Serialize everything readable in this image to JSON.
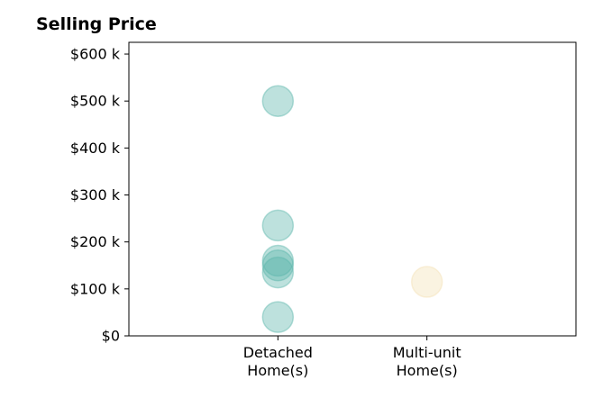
{
  "chart_data": {
    "type": "scatter",
    "title": "Selling Price",
    "xlabel": "",
    "ylabel": "",
    "categories": [
      "Detached\nHome(s)",
      "Multi-unit\nHome(s)"
    ],
    "xlim": [
      -1,
      2
    ],
    "ylim": [
      0,
      625000
    ],
    "yticks": [
      0,
      100000,
      200000,
      300000,
      400000,
      500000,
      600000
    ],
    "ytick_labels": [
      "$0",
      "$100 k",
      "$200 k",
      "$300 k",
      "$400 k",
      "$500 k",
      "$600 k"
    ],
    "grid": false,
    "legend": "none",
    "series": [
      {
        "category": "Detached\nHome(s)",
        "color": "#5bb5aa",
        "values": [
          500000,
          235000,
          160000,
          150000,
          135000,
          40000
        ]
      },
      {
        "category": "Multi-unit\nHome(s)",
        "color": "#f3e0b4",
        "values": [
          115000
        ]
      }
    ]
  }
}
